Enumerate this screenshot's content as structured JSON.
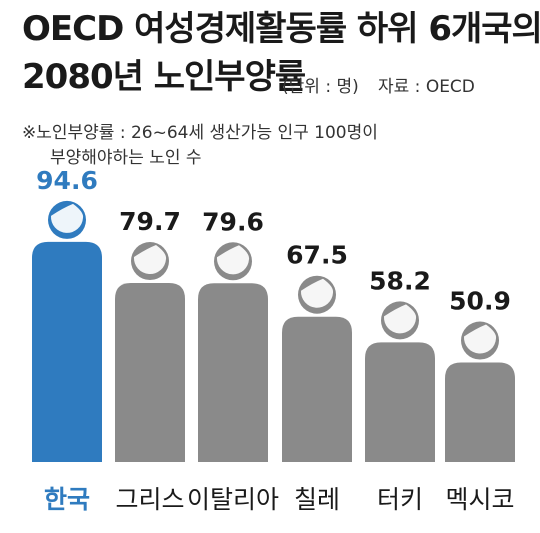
{
  "title_line1": "OECD 여성경제활동률 하위 6개국의",
  "title_line2": "2080년 노인부양률",
  "unit": "(단위 : 명)",
  "source": "자료 : OECD",
  "note_line1": "※노인부양률 : 26~64세 생산가능 인구 100명이",
  "note_line2": "부양해야하는 노인 수",
  "colors": {
    "highlight": "#2f7bbf",
    "normal": "#8a8a8a",
    "text": "#1a1a1a"
  },
  "chart_data": {
    "type": "bar",
    "categories": [
      "한국",
      "그리스",
      "이탈리아",
      "칠레",
      "터키",
      "멕시코"
    ],
    "values": [
      94.6,
      79.7,
      79.6,
      67.5,
      58.2,
      50.9
    ],
    "value_labels": [
      "94.6",
      "79.7",
      "79.6",
      "67.5",
      "58.2",
      "50.9"
    ],
    "highlight_index": 0
  }
}
